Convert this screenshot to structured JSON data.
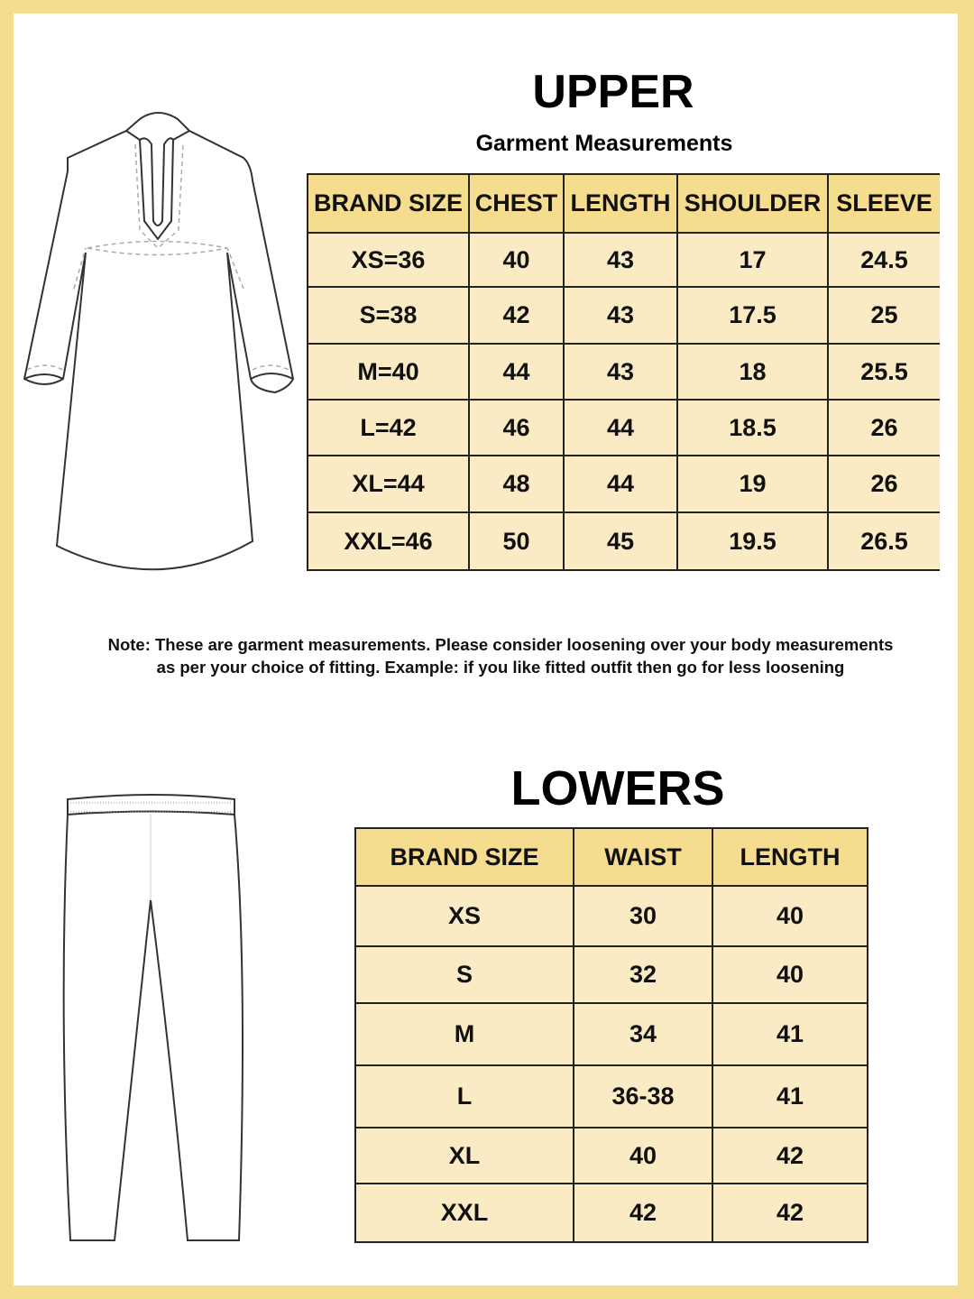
{
  "upper": {
    "title": "UPPER",
    "subtitle": "Garment Measurements",
    "headers": [
      "BRAND SIZE",
      "CHEST",
      "LENGTH",
      "SHOULDER",
      "SLEEVE"
    ],
    "rows": [
      [
        "XS=36",
        "40",
        "43",
        "17",
        "24.5"
      ],
      [
        "S=38",
        "42",
        "43",
        "17.5",
        "25"
      ],
      [
        "M=40",
        "44",
        "43",
        "18",
        "25.5"
      ],
      [
        "L=42",
        "46",
        "44",
        "18.5",
        "26"
      ],
      [
        "XL=44",
        "48",
        "44",
        "19",
        "26"
      ],
      [
        "XXL=46",
        "50",
        "45",
        "19.5",
        "26.5"
      ]
    ]
  },
  "note": {
    "line1": "Note: These are garment measurements. Please consider loosening over your body measurements",
    "line2": "as per your choice of fitting. Example: if you like fitted outfit then go for less loosening"
  },
  "lowers": {
    "title": "LOWERS",
    "headers": [
      "BRAND SIZE",
      "WAIST",
      "LENGTH"
    ],
    "rows": [
      [
        "XS",
        "30",
        "40"
      ],
      [
        "S",
        "32",
        "40"
      ],
      [
        "M",
        "34",
        "41"
      ],
      [
        "L",
        "36-38",
        "41"
      ],
      [
        "XL",
        "40",
        "42"
      ],
      [
        "XXL",
        "42",
        "42"
      ]
    ]
  },
  "colors": {
    "frame": "#f5dc8e",
    "header": "#f5dc8e",
    "row": "#faebc4"
  },
  "icons": [
    "kurta-illustration",
    "pants-illustration"
  ]
}
